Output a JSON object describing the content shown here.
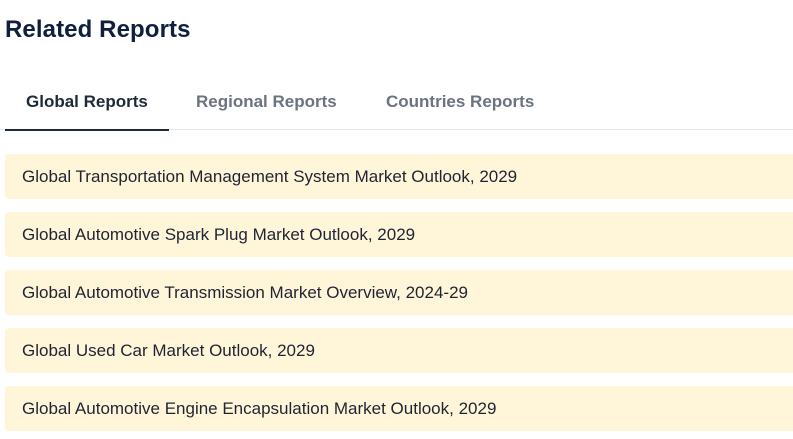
{
  "section": {
    "title": "Related Reports"
  },
  "tabs": [
    {
      "label": "Global Reports",
      "active": true
    },
    {
      "label": "Regional Reports",
      "active": false
    },
    {
      "label": "Countries Reports",
      "active": false
    }
  ],
  "reports": [
    {
      "title": "Global Transportation Management System Market Outlook, 2029"
    },
    {
      "title": "Global Automotive Spark Plug Market Outlook, 2029"
    },
    {
      "title": "Global Automotive Transmission Market Overview, 2024-29"
    },
    {
      "title": "Global Used Car Market Outlook, 2029"
    },
    {
      "title": "Global Automotive Engine Encapsulation Market Outlook, 2029"
    }
  ],
  "colors": {
    "title": "#0f1f3d",
    "tab_active": "#1f2937",
    "tab_inactive": "#6b7280",
    "item_background": "#fff5d9"
  }
}
